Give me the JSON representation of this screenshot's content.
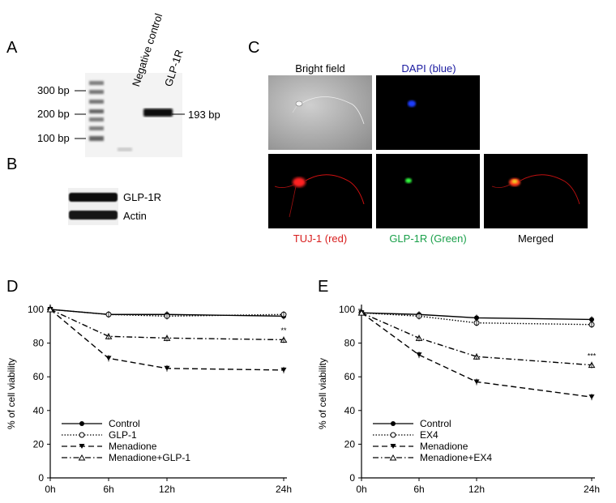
{
  "panelA": {
    "letter": "A",
    "lanes": [
      "Negative control",
      "GLP-1R"
    ],
    "ladder": [
      "300 bp",
      "200 bp",
      "100 bp"
    ],
    "band": "193 bp"
  },
  "panelB": {
    "letter": "B",
    "rows": [
      "GLP-1R",
      "Actin"
    ]
  },
  "panelC": {
    "letter": "C",
    "titles_top": [
      "Bright field",
      "DAPI (blue)"
    ],
    "titles_bottom": [
      "TUJ-1 (red)",
      "GLP-1R (Green)",
      "Merged"
    ],
    "colors": {
      "dapi": "#1a1aa0",
      "tuj": "#d81e1e",
      "glp": "#1aa04a",
      "merged": "#000000"
    }
  },
  "chart_data": [
    {
      "type": "line",
      "panel": "D",
      "categories": [
        "0h",
        "6h",
        "12h",
        "24h"
      ],
      "x": [
        0,
        6,
        12,
        24
      ],
      "ylabel": "% of cell viability",
      "ylim": [
        0,
        100
      ],
      "yticks": [
        0,
        20,
        40,
        60,
        80,
        100
      ],
      "legend": "bottom-left",
      "series": [
        {
          "name": "Control",
          "values": [
            100,
            97,
            97,
            96
          ],
          "marker": "filled-circle",
          "dash": "solid"
        },
        {
          "name": "GLP-1",
          "values": [
            100,
            97,
            96,
            97
          ],
          "marker": "open-circle",
          "dash": "dotted"
        },
        {
          "name": "Menadione",
          "values": [
            100,
            71,
            65,
            64
          ],
          "marker": "filled-triangle",
          "dash": "dashed"
        },
        {
          "name": "Menadione+GLP-1",
          "values": [
            100,
            84,
            83,
            82
          ],
          "marker": "open-triangle",
          "dash": "dashdot"
        }
      ],
      "annotations": [
        {
          "text": "**",
          "x": 24,
          "y": 86
        }
      ]
    },
    {
      "type": "line",
      "panel": "E",
      "categories": [
        "0h",
        "6h",
        "12h",
        "24h"
      ],
      "x": [
        0,
        6,
        12,
        24
      ],
      "ylabel": "% of cell viability",
      "ylim": [
        0,
        100
      ],
      "yticks": [
        0,
        20,
        40,
        60,
        80,
        100
      ],
      "legend": "bottom-left",
      "series": [
        {
          "name": "Control",
          "values": [
            98,
            97,
            95,
            94
          ],
          "marker": "filled-circle",
          "dash": "solid"
        },
        {
          "name": "EX4",
          "values": [
            98,
            96,
            92,
            91
          ],
          "marker": "open-circle",
          "dash": "dotted"
        },
        {
          "name": "Menadione",
          "values": [
            98,
            73,
            57,
            48
          ],
          "marker": "filled-triangle",
          "dash": "dashed"
        },
        {
          "name": "Menadione+EX4",
          "values": [
            98,
            83,
            72,
            67
          ],
          "marker": "open-triangle",
          "dash": "dashdot"
        }
      ],
      "annotations": [
        {
          "text": "***",
          "x": 24,
          "y": 71
        }
      ]
    }
  ],
  "panelD": {
    "letter": "D"
  },
  "panelE": {
    "letter": "E"
  }
}
